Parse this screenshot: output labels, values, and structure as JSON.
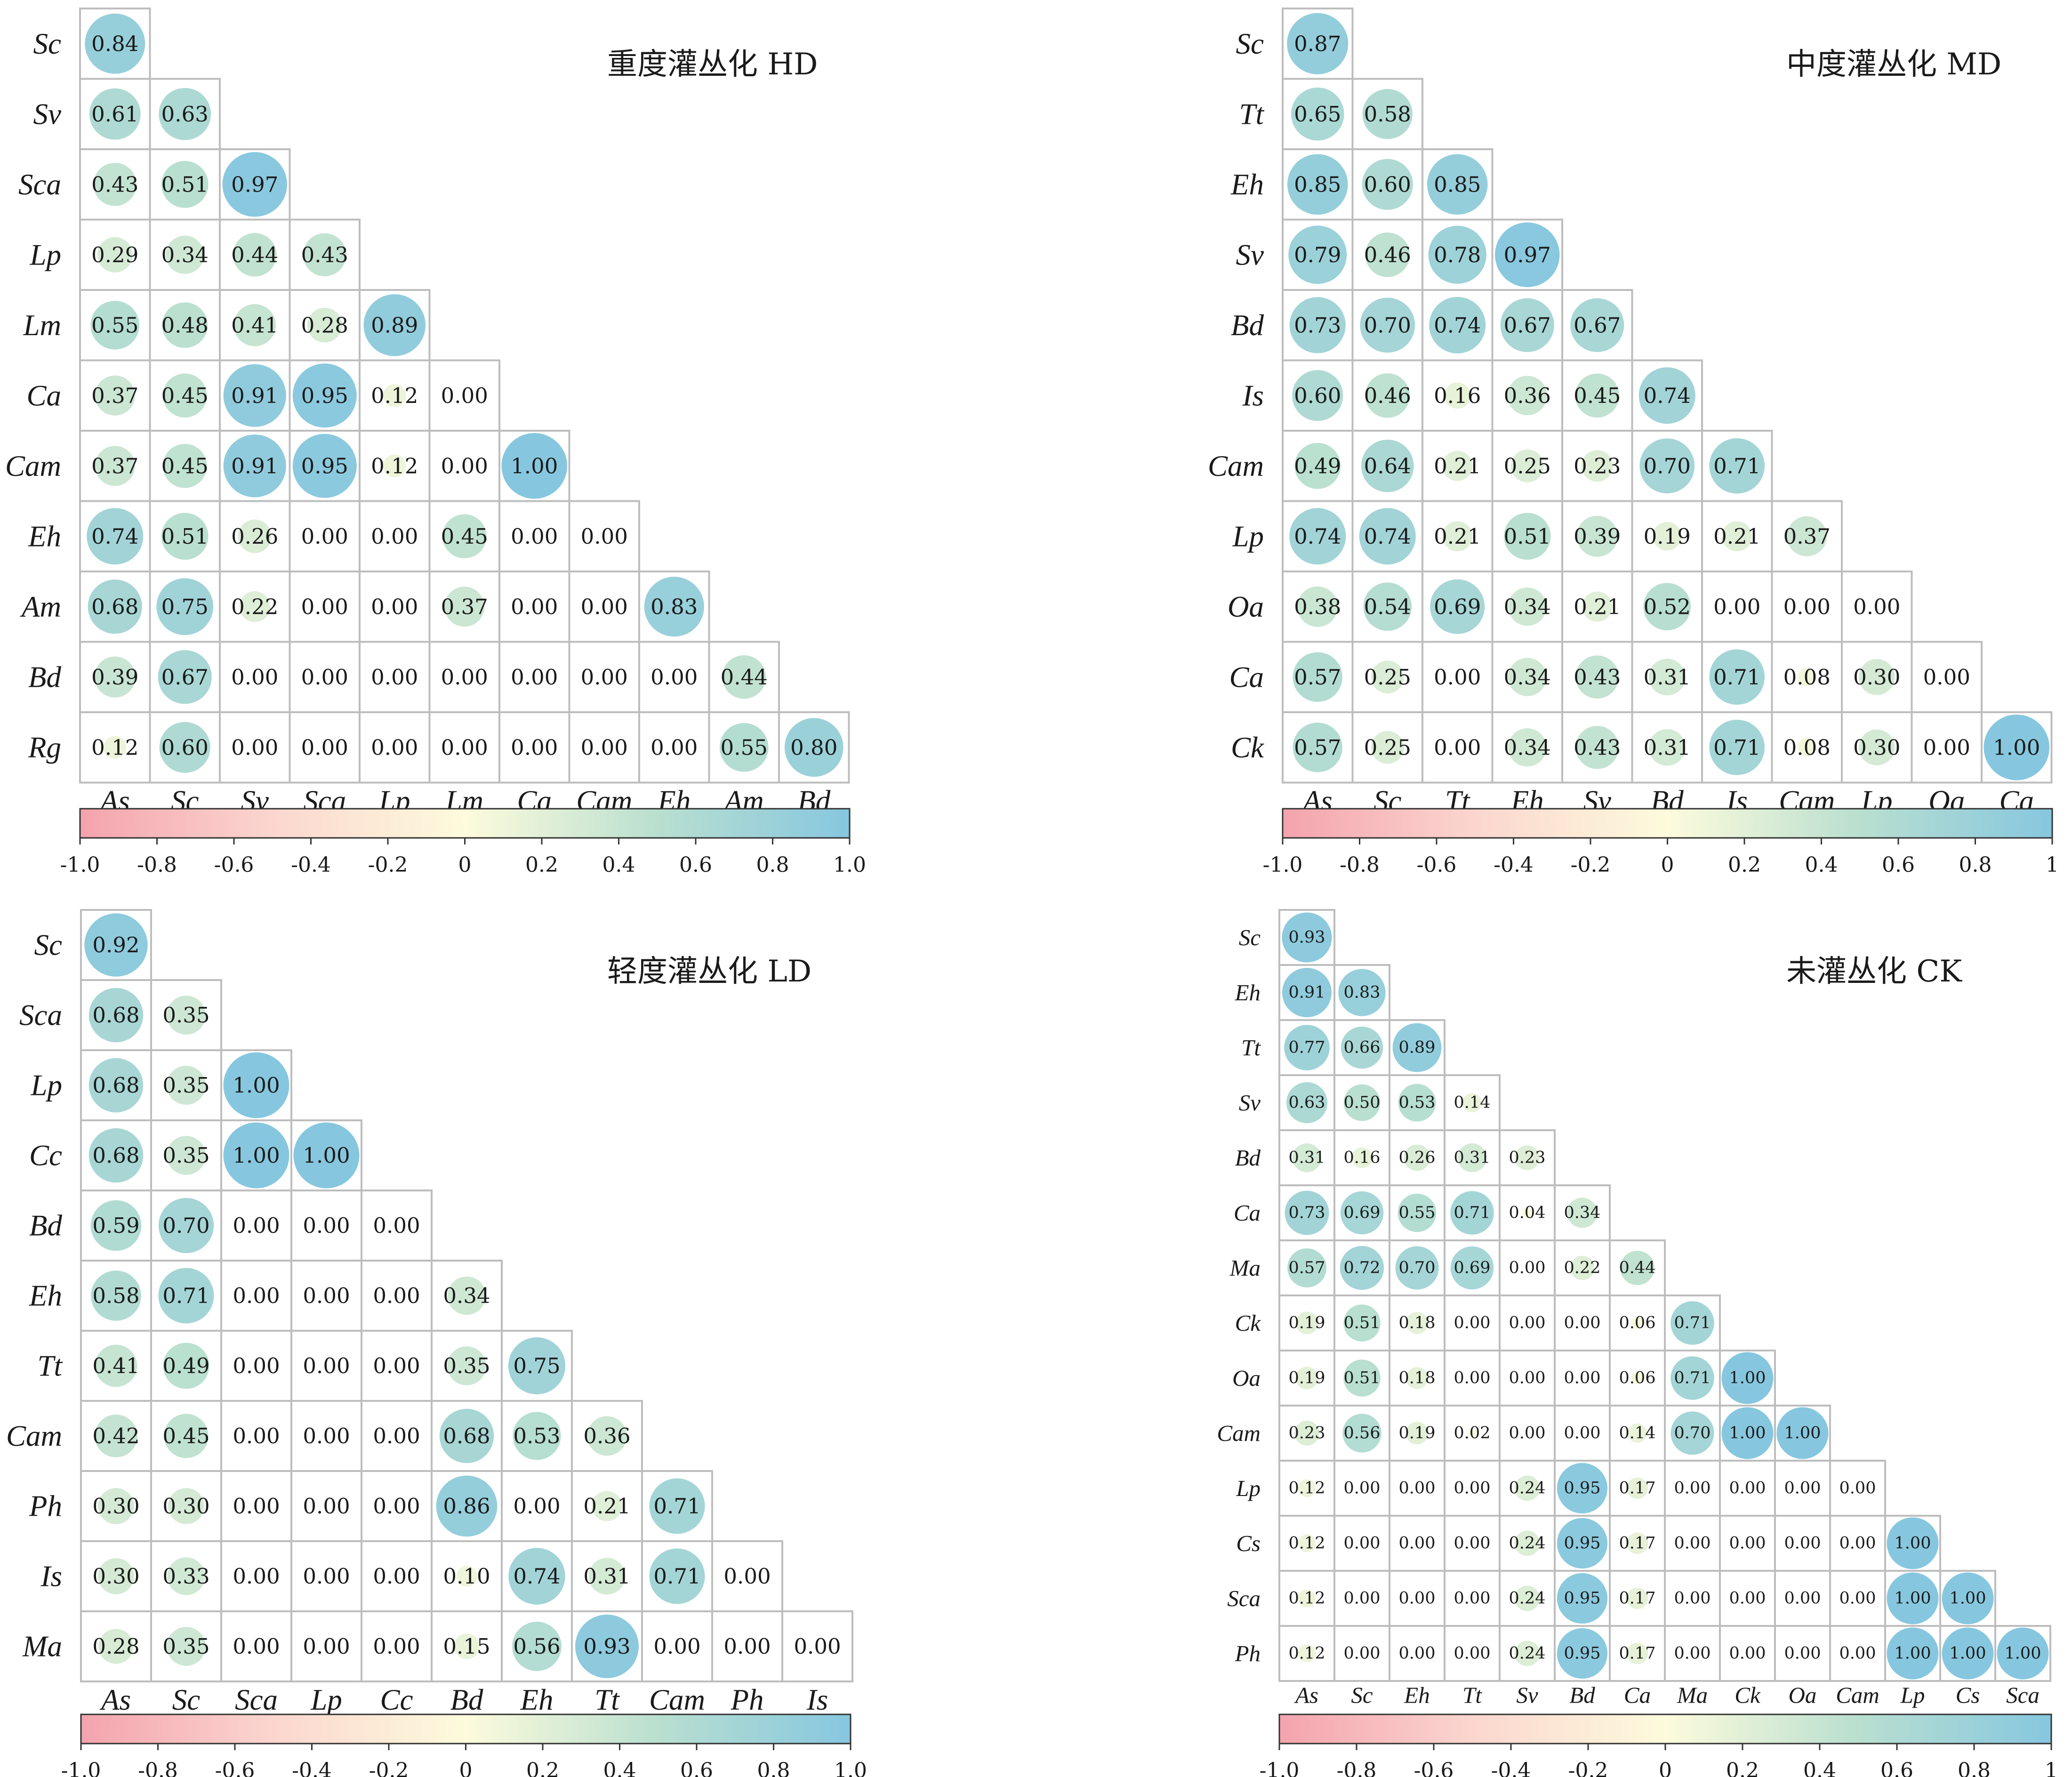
{
  "chart_data": [
    {
      "type": "heatmap",
      "title": "重度灌丛化 HD",
      "rows": [
        "Sc",
        "Sv",
        "Sca",
        "Lp",
        "Lm",
        "Ca",
        "Cam",
        "Eh",
        "Am",
        "Bd",
        "Rg"
      ],
      "cols": [
        "As",
        "Sc",
        "Sv",
        "Sca",
        "Lp",
        "Lm",
        "Ca",
        "Cam",
        "Eh",
        "Am",
        "Bd"
      ],
      "values": [
        [
          0.84
        ],
        [
          0.61,
          0.63
        ],
        [
          0.43,
          0.51,
          0.97
        ],
        [
          0.29,
          0.34,
          0.44,
          0.43
        ],
        [
          0.55,
          0.48,
          0.41,
          0.28,
          0.89
        ],
        [
          0.37,
          0.45,
          0.91,
          0.95,
          0.12,
          0.0
        ],
        [
          0.37,
          0.45,
          0.91,
          0.95,
          0.12,
          0.0,
          1.0
        ],
        [
          0.74,
          0.51,
          0.26,
          0.0,
          0.0,
          0.45,
          0.0,
          0.0
        ],
        [
          0.68,
          0.75,
          0.22,
          0.0,
          0.0,
          0.37,
          0.0,
          0.0,
          0.83
        ],
        [
          0.39,
          0.67,
          0.0,
          0.0,
          0.0,
          0.0,
          0.0,
          0.0,
          0.0,
          0.44
        ],
        [
          0.12,
          0.6,
          0.0,
          0.0,
          0.0,
          0.0,
          0.0,
          0.0,
          0.0,
          0.55,
          0.8
        ]
      ],
      "colorbar_ticks": [
        "-1.0",
        "-0.8",
        "-0.6",
        "-0.4",
        "-0.2",
        "0",
        "0.2",
        "0.4",
        "0.6",
        "0.8",
        "1.0"
      ],
      "range": [
        -1,
        1
      ]
    },
    {
      "type": "heatmap",
      "title": "中度灌丛化 MD",
      "rows": [
        "Sc",
        "Tt",
        "Eh",
        "Sv",
        "Bd",
        "Is",
        "Cam",
        "Lp",
        "Oa",
        "Ca",
        "Ck"
      ],
      "cols": [
        "As",
        "Sc",
        "Tt",
        "Eh",
        "Sv",
        "Bd",
        "Is",
        "Cam",
        "Lp",
        "Oa",
        "Ca"
      ],
      "values": [
        [
          0.87
        ],
        [
          0.65,
          0.58
        ],
        [
          0.85,
          0.6,
          0.85
        ],
        [
          0.79,
          0.46,
          0.78,
          0.97
        ],
        [
          0.73,
          0.7,
          0.74,
          0.67,
          0.67
        ],
        [
          0.6,
          0.46,
          0.16,
          0.36,
          0.45,
          0.74
        ],
        [
          0.49,
          0.64,
          0.21,
          0.25,
          0.23,
          0.7,
          0.71
        ],
        [
          0.74,
          0.74,
          0.21,
          0.51,
          0.39,
          0.19,
          0.21,
          0.37
        ],
        [
          0.38,
          0.54,
          0.69,
          0.34,
          0.21,
          0.52,
          0.0,
          0.0,
          0.0
        ],
        [
          0.57,
          0.25,
          0.0,
          0.34,
          0.43,
          0.31,
          0.71,
          0.08,
          0.3,
          0.0
        ],
        [
          0.57,
          0.25,
          0.0,
          0.34,
          0.43,
          0.31,
          0.71,
          0.08,
          0.3,
          0.0,
          1.0
        ]
      ],
      "colorbar_ticks": [
        "-1.0",
        "-0.8",
        "-0.6",
        "-0.4",
        "-0.2",
        "0",
        "0.2",
        "0.4",
        "0.6",
        "0.8",
        "1"
      ],
      "range": [
        -1,
        1
      ]
    },
    {
      "type": "heatmap",
      "title": "轻度灌丛化 LD",
      "rows": [
        "Sc",
        "Sca",
        "Lp",
        "Cc",
        "Bd",
        "Eh",
        "Tt",
        "Cam",
        "Ph",
        "Is",
        "Ma"
      ],
      "cols": [
        "As",
        "Sc",
        "Sca",
        "Lp",
        "Cc",
        "Bd",
        "Eh",
        "Tt",
        "Cam",
        "Ph",
        "Is"
      ],
      "values": [
        [
          0.92
        ],
        [
          0.68,
          0.35
        ],
        [
          0.68,
          0.35,
          1.0
        ],
        [
          0.68,
          0.35,
          1.0,
          1.0
        ],
        [
          0.59,
          0.7,
          0.0,
          0.0,
          0.0
        ],
        [
          0.58,
          0.71,
          0.0,
          0.0,
          0.0,
          0.34
        ],
        [
          0.41,
          0.49,
          0.0,
          0.0,
          0.0,
          0.35,
          0.75
        ],
        [
          0.42,
          0.45,
          0.0,
          0.0,
          0.0,
          0.68,
          0.53,
          0.36
        ],
        [
          0.3,
          0.3,
          0.0,
          0.0,
          0.0,
          0.86,
          0.0,
          0.21,
          0.71
        ],
        [
          0.3,
          0.33,
          0.0,
          0.0,
          0.0,
          0.1,
          0.74,
          0.31,
          0.71,
          0.0
        ],
        [
          0.28,
          0.35,
          0.0,
          0.0,
          0.0,
          0.15,
          0.56,
          0.93,
          0.0,
          0.0,
          0.0
        ]
      ],
      "colorbar_ticks": [
        "-1.0",
        "-0.8",
        "-0.6",
        "-0.4",
        "-0.2",
        "0",
        "0.2",
        "0.4",
        "0.6",
        "0.8",
        "1.0"
      ],
      "range": [
        -1,
        1
      ]
    },
    {
      "type": "heatmap",
      "title": "未灌丛化 CK",
      "rows": [
        "Sc",
        "Eh",
        "Tt",
        "Sv",
        "Bd",
        "Ca",
        "Ma",
        "Ck",
        "Oa",
        "Cam",
        "Lp",
        "Cs",
        "Sca",
        "Ph"
      ],
      "cols": [
        "As",
        "Sc",
        "Eh",
        "Tt",
        "Sv",
        "Bd",
        "Ca",
        "Ma",
        "Ck",
        "Oa",
        "Cam",
        "Lp",
        "Cs",
        "Sca"
      ],
      "values": [
        [
          0.93
        ],
        [
          0.91,
          0.83
        ],
        [
          0.77,
          0.66,
          0.89
        ],
        [
          0.63,
          0.5,
          0.53,
          0.14
        ],
        [
          0.31,
          0.16,
          0.26,
          0.31,
          0.23
        ],
        [
          0.73,
          0.69,
          0.55,
          0.71,
          0.04,
          0.34
        ],
        [
          0.57,
          0.72,
          0.7,
          0.69,
          0.0,
          0.22,
          0.44
        ],
        [
          0.19,
          0.51,
          0.18,
          0.0,
          0.0,
          0.0,
          0.06,
          0.71
        ],
        [
          0.19,
          0.51,
          0.18,
          0.0,
          0.0,
          0.0,
          0.06,
          0.71,
          1.0
        ],
        [
          0.23,
          0.56,
          0.19,
          0.02,
          0.0,
          0.0,
          0.14,
          0.7,
          1.0,
          1.0
        ],
        [
          0.12,
          0.0,
          0.0,
          0.0,
          0.24,
          0.95,
          0.17,
          0.0,
          0.0,
          0.0,
          0.0
        ],
        [
          0.12,
          0.0,
          0.0,
          0.0,
          0.24,
          0.95,
          0.17,
          0.0,
          0.0,
          0.0,
          0.0,
          1.0
        ],
        [
          0.12,
          0.0,
          0.0,
          0.0,
          0.24,
          0.95,
          0.17,
          0.0,
          0.0,
          0.0,
          0.0,
          1.0,
          1.0
        ],
        [
          0.12,
          0.0,
          0.0,
          0.0,
          0.24,
          0.95,
          0.17,
          0.0,
          0.0,
          0.0,
          0.0,
          1.0,
          1.0,
          1.0
        ]
      ],
      "colorbar_ticks": [
        "-1.0",
        "-0.8",
        "-0.6",
        "-0.4",
        "-0.2",
        "0",
        "0.2",
        "0.4",
        "0.6",
        "0.8",
        "1"
      ],
      "range": [
        -1,
        1
      ]
    }
  ],
  "colors": {
    "neg_end": "#f4a3ad",
    "mid_low": "#fbd6cf",
    "zero": "#fdfbdc",
    "mid_high": "#b9dfd0",
    "pos_end": "#86c7df",
    "cell_border": "#bdbdbd",
    "text": "#1a1a1a"
  }
}
